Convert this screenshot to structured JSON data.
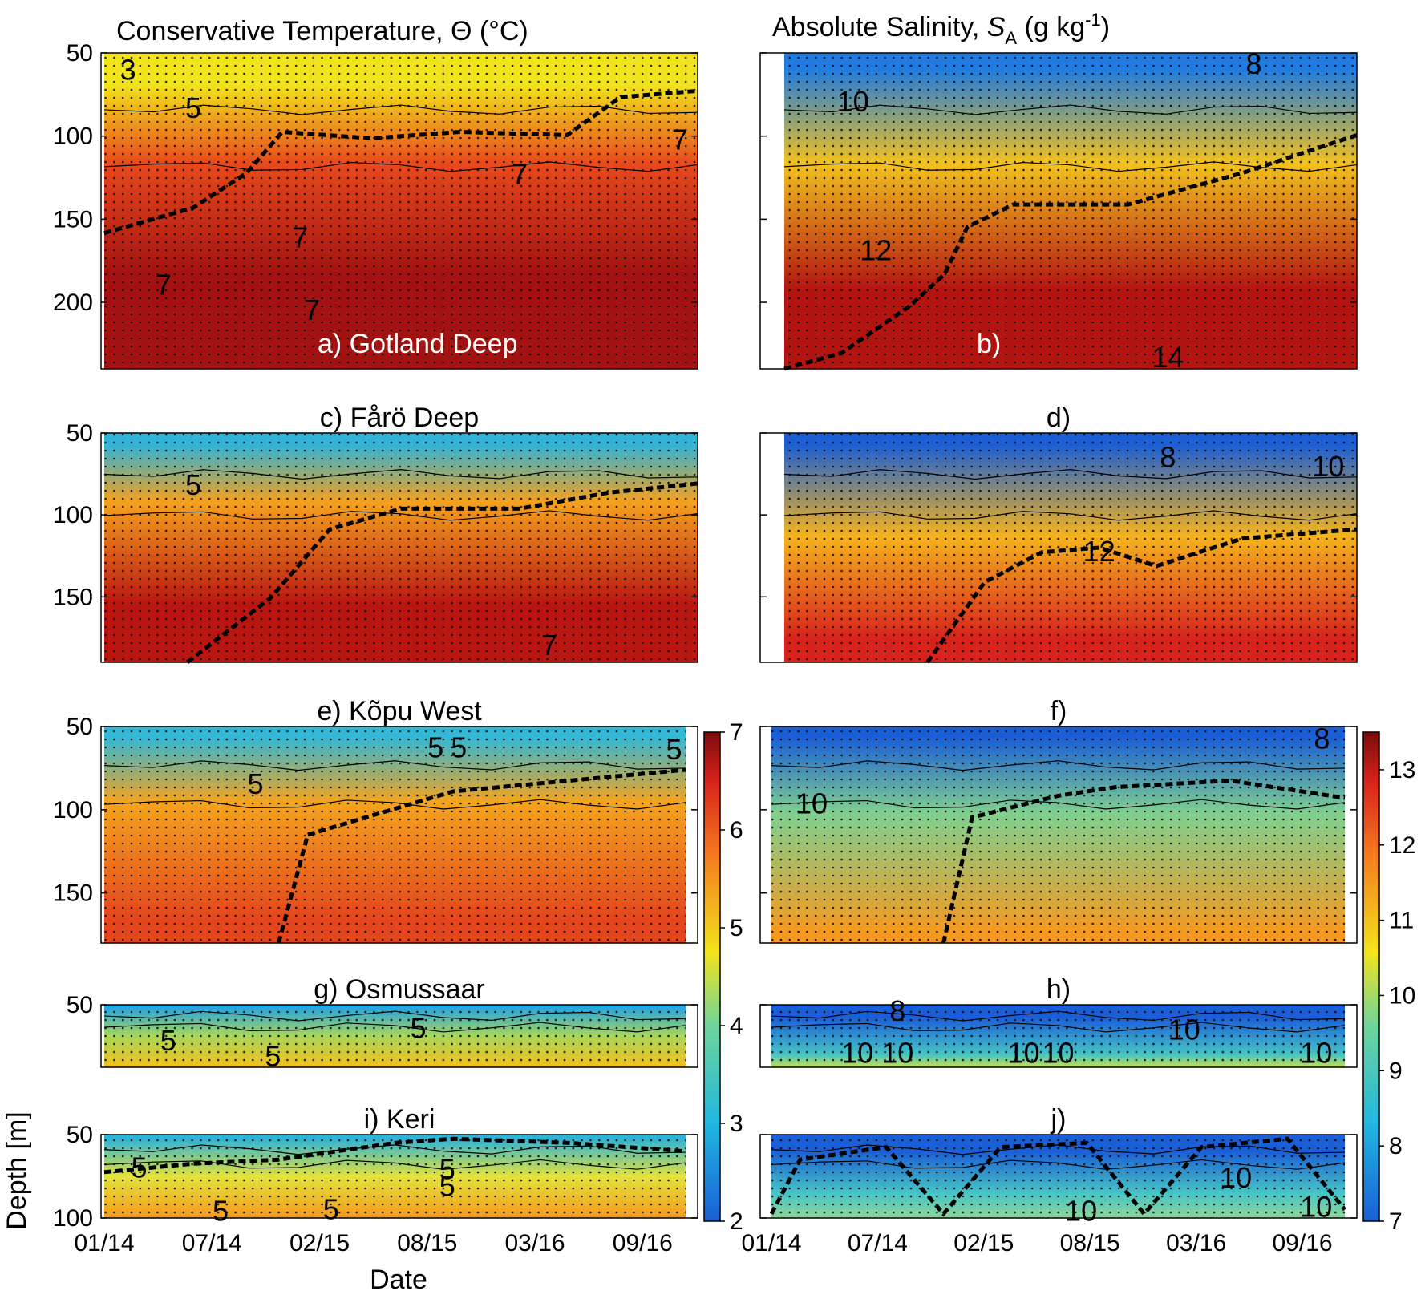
{
  "figure": {
    "temp_title": "Conservative Temperature,  Θ (°C)",
    "sal_title_main": "Absolute Salinity, ",
    "sal_title_symbol": "S",
    "sal_title_sub": "A",
    "sal_title_units": " (g kg",
    "sal_title_exp": "-1",
    "sal_title_close": ")",
    "xlabel": "Date",
    "ylabel": "Depth [m]"
  },
  "chart_data": {
    "type": "heatmap",
    "x_tick_labels": [
      "01/14",
      "07/14",
      "02/15",
      "08/15",
      "03/16",
      "09/16"
    ],
    "temperature_colorbar": {
      "range": [
        2,
        7
      ],
      "ticks": [
        "2",
        "3",
        "4",
        "5",
        "6",
        "7"
      ],
      "colormap": "jet"
    },
    "salinity_colorbar": {
      "range": [
        7,
        13.5
      ],
      "ticks": [
        "7",
        "8",
        "9",
        "10",
        "11",
        "12",
        "13"
      ],
      "colormap": "jet"
    },
    "panels": [
      {
        "id": "a",
        "label": "a) Gotland Deep",
        "variable": "Conservative Temperature",
        "station": "Gotland Deep",
        "depth_range": [
          50,
          240
        ],
        "depth_ticks": [
          "50",
          "100",
          "150",
          "200"
        ],
        "contour_labels": [
          "3",
          "5",
          "7",
          "7",
          "7",
          "7",
          "7"
        ]
      },
      {
        "id": "b",
        "label": "b)",
        "variable": "Absolute Salinity",
        "station": "Gotland Deep",
        "depth_range": [
          50,
          240
        ],
        "depth_ticks": [
          "50",
          "100",
          "150",
          "200"
        ],
        "contour_labels": [
          "8",
          "10",
          "12",
          "14"
        ]
      },
      {
        "id": "c",
        "label": "c) Fårö Deep",
        "variable": "Conservative Temperature",
        "station": "Fårö Deep",
        "depth_range": [
          50,
          190
        ],
        "depth_ticks": [
          "50",
          "100",
          "150"
        ],
        "contour_labels": [
          "5",
          "7"
        ]
      },
      {
        "id": "d",
        "label": "d)",
        "variable": "Absolute Salinity",
        "station": "Fårö Deep",
        "depth_range": [
          50,
          190
        ],
        "depth_ticks": [
          "50",
          "100",
          "150"
        ],
        "contour_labels": [
          "8",
          "10",
          "12"
        ]
      },
      {
        "id": "e",
        "label": "e) Kõpu West",
        "variable": "Conservative Temperature",
        "station": "Kõpu West",
        "depth_range": [
          50,
          180
        ],
        "depth_ticks": [
          "50",
          "100",
          "150"
        ],
        "contour_labels": [
          "5",
          "5",
          "5",
          "5"
        ]
      },
      {
        "id": "f",
        "label": "f)",
        "variable": "Absolute Salinity",
        "station": "Kõpu West",
        "depth_range": [
          50,
          180
        ],
        "depth_ticks": [
          "50",
          "100",
          "150"
        ],
        "contour_labels": [
          "10",
          "8"
        ]
      },
      {
        "id": "g",
        "label": "g) Osmussaar",
        "variable": "Conservative Temperature",
        "station": "Osmussaar",
        "depth_range": [
          50,
          85
        ],
        "depth_ticks": [
          "50"
        ],
        "contour_labels": [
          "5",
          "5",
          "5"
        ]
      },
      {
        "id": "h",
        "label": "h)",
        "variable": "Absolute Salinity",
        "station": "Osmussaar",
        "depth_range": [
          50,
          85
        ],
        "depth_ticks": [
          "50"
        ],
        "contour_labels": [
          "10",
          "10",
          "10",
          "10",
          "10",
          "10",
          "8"
        ]
      },
      {
        "id": "i",
        "label": "i) Keri",
        "variable": "Conservative Temperature",
        "station": "Keri",
        "depth_range": [
          50,
          100
        ],
        "depth_ticks": [
          "50",
          "100"
        ],
        "contour_labels": [
          "5",
          "5",
          "5",
          "5",
          "5"
        ]
      },
      {
        "id": "j",
        "label": "j)",
        "variable": "Absolute Salinity",
        "station": "Keri",
        "depth_range": [
          50,
          100
        ],
        "depth_ticks": [
          "50",
          "100"
        ],
        "contour_labels": [
          "10",
          "10",
          "10"
        ]
      }
    ]
  }
}
